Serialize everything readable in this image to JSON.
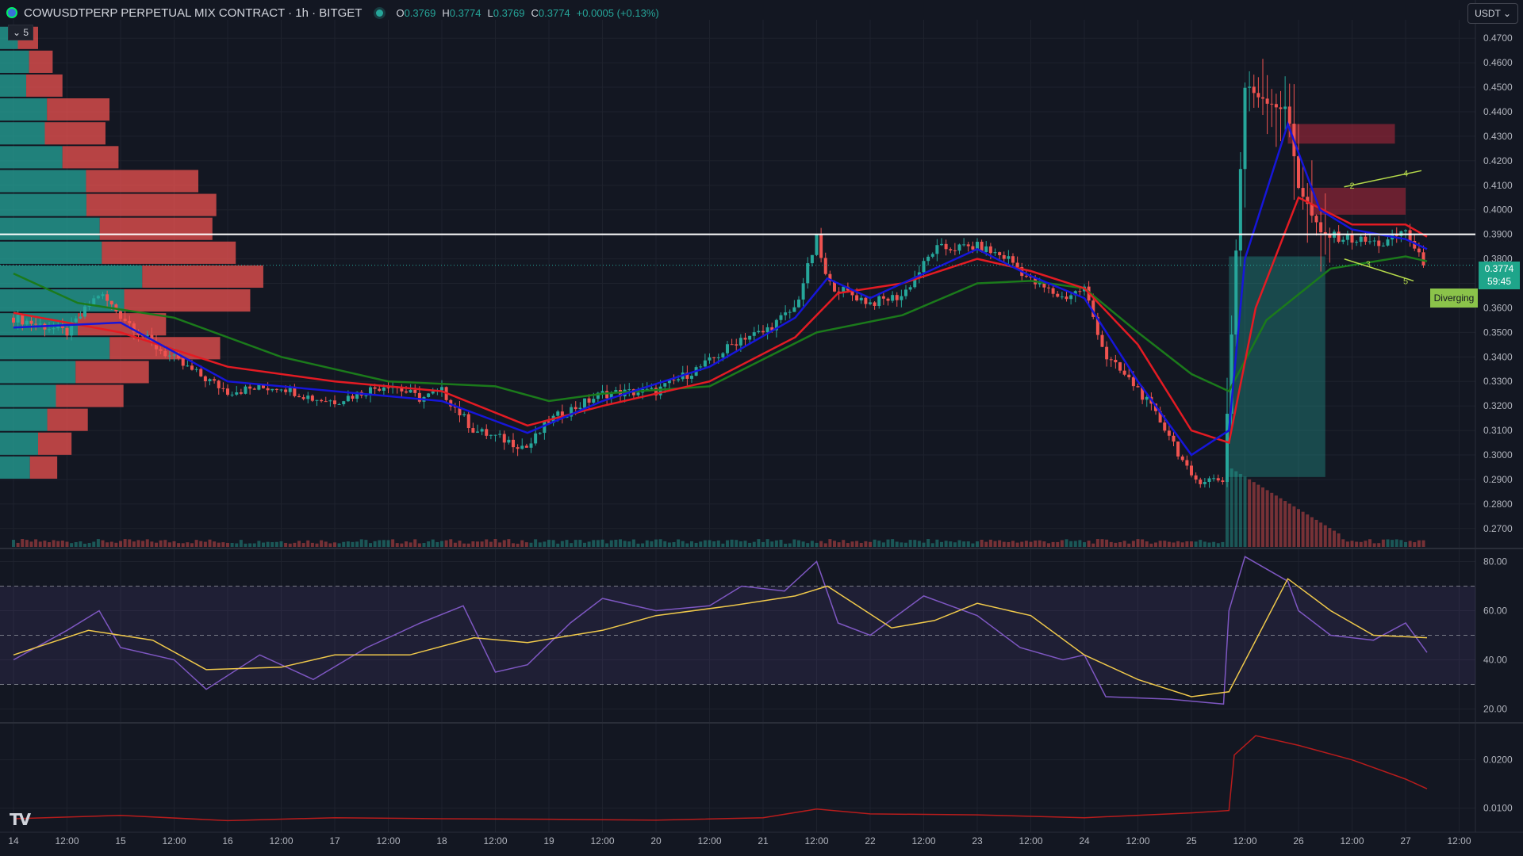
{
  "header": {
    "title": "COWUSDTPERP PERPETUAL MIX CONTRACT · 1h · BITGET",
    "ohlc": [
      {
        "k": "O",
        "v": "0.3769"
      },
      {
        "k": "H",
        "v": "0.3774"
      },
      {
        "k": "L",
        "v": "0.3769"
      },
      {
        "k": "C",
        "v": "0.3774"
      }
    ],
    "change": "+0.0005 (+0.13%)"
  },
  "controls": {
    "collapse_label": "⌄ 5",
    "currency": "USDT ⌄"
  },
  "last_price": {
    "value": "0.3774",
    "countdown": "59:45"
  },
  "diverging_label": "Diverging",
  "logo_text": "TV",
  "colors": {
    "background": "#131722",
    "grid": "#1e222d",
    "up": "#26a69a",
    "down": "#ef5350",
    "ema_fast": "#1616d9",
    "ema_mid": "#e31b23",
    "ema_slow": "#1b7a1b",
    "rsi": "#7e57c2",
    "rsi_ma": "#f0c94b",
    "oscillator": "#b71c1c",
    "level_line": "#ffffff"
  },
  "chart_data": [
    {
      "type": "candlestick",
      "pane": "price",
      "ylim": [
        0.2625,
        0.4775
      ],
      "y_ticks": [
        "0.4700",
        "0.4600",
        "0.4500",
        "0.4400",
        "0.4300",
        "0.4200",
        "0.4100",
        "0.4000",
        "0.3900",
        "0.3800",
        "0.3700",
        "0.3600",
        "0.3500",
        "0.3400",
        "0.3300",
        "0.3200",
        "0.3100",
        "0.3000",
        "0.2900",
        "0.2800",
        "0.2700"
      ],
      "x_tick_labels": [
        "14",
        "12:00",
        "15",
        "12:00",
        "16",
        "12:00",
        "17",
        "12:00",
        "18",
        "12:00",
        "19",
        "12:00",
        "20",
        "12:00",
        "21",
        "12:00",
        "22",
        "12:00",
        "23",
        "12:00",
        "24",
        "12:00",
        "25",
        "12:00",
        "26",
        "12:00",
        "27",
        "12:00"
      ],
      "close_series": [
        {
          "day": 14.0,
          "price": 0.356
        },
        {
          "day": 14.5,
          "price": 0.35
        },
        {
          "day": 14.8,
          "price": 0.366
        },
        {
          "day": 15.0,
          "price": 0.357
        },
        {
          "day": 15.3,
          "price": 0.345
        },
        {
          "day": 15.6,
          "price": 0.336
        },
        {
          "day": 16.0,
          "price": 0.326
        },
        {
          "day": 16.5,
          "price": 0.328
        },
        {
          "day": 16.8,
          "price": 0.323
        },
        {
          "day": 17.0,
          "price": 0.322
        },
        {
          "day": 17.5,
          "price": 0.329
        },
        {
          "day": 17.8,
          "price": 0.323
        },
        {
          "day": 18.0,
          "price": 0.326
        },
        {
          "day": 18.3,
          "price": 0.31
        },
        {
          "day": 18.6,
          "price": 0.306
        },
        {
          "day": 18.8,
          "price": 0.303
        },
        {
          "day": 19.0,
          "price": 0.314
        },
        {
          "day": 19.5,
          "price": 0.325
        },
        {
          "day": 20.0,
          "price": 0.326
        },
        {
          "day": 20.5,
          "price": 0.338
        },
        {
          "day": 20.8,
          "price": 0.348
        },
        {
          "day": 21.0,
          "price": 0.35
        },
        {
          "day": 21.3,
          "price": 0.36
        },
        {
          "day": 21.5,
          "price": 0.388
        },
        {
          "day": 21.6,
          "price": 0.37
        },
        {
          "day": 22.0,
          "price": 0.362
        },
        {
          "day": 22.3,
          "price": 0.365
        },
        {
          "day": 22.6,
          "price": 0.384
        },
        {
          "day": 23.0,
          "price": 0.385
        },
        {
          "day": 23.3,
          "price": 0.38
        },
        {
          "day": 23.5,
          "price": 0.371
        },
        {
          "day": 23.8,
          "price": 0.364
        },
        {
          "day": 24.0,
          "price": 0.368
        },
        {
          "day": 24.2,
          "price": 0.34
        },
        {
          "day": 24.5,
          "price": 0.327
        },
        {
          "day": 24.8,
          "price": 0.308
        },
        {
          "day": 25.0,
          "price": 0.29
        },
        {
          "day": 25.3,
          "price": 0.29
        },
        {
          "day": 25.35,
          "price": 0.33
        },
        {
          "day": 25.5,
          "price": 0.45
        },
        {
          "day": 25.7,
          "price": 0.445
        },
        {
          "day": 25.9,
          "price": 0.44
        },
        {
          "day": 26.0,
          "price": 0.41
        },
        {
          "day": 26.2,
          "price": 0.39
        },
        {
          "day": 26.5,
          "price": 0.388
        },
        {
          "day": 26.8,
          "price": 0.386
        },
        {
          "day": 27.0,
          "price": 0.392
        },
        {
          "day": 27.1,
          "price": 0.382
        },
        {
          "day": 27.2,
          "price": 0.3774
        }
      ],
      "ema_fast": [
        {
          "day": 14.0,
          "price": 0.352
        },
        {
          "day": 15.0,
          "price": 0.354
        },
        {
          "day": 16.0,
          "price": 0.33
        },
        {
          "day": 17.0,
          "price": 0.326
        },
        {
          "day": 18.0,
          "price": 0.322
        },
        {
          "day": 18.8,
          "price": 0.309
        },
        {
          "day": 19.5,
          "price": 0.322
        },
        {
          "day": 20.5,
          "price": 0.336
        },
        {
          "day": 21.3,
          "price": 0.356
        },
        {
          "day": 21.6,
          "price": 0.372
        },
        {
          "day": 22.0,
          "price": 0.364
        },
        {
          "day": 22.5,
          "price": 0.374
        },
        {
          "day": 23.0,
          "price": 0.384
        },
        {
          "day": 23.5,
          "price": 0.373
        },
        {
          "day": 24.0,
          "price": 0.364
        },
        {
          "day": 24.5,
          "price": 0.33
        },
        {
          "day": 25.0,
          "price": 0.3
        },
        {
          "day": 25.35,
          "price": 0.31
        },
        {
          "day": 25.5,
          "price": 0.38
        },
        {
          "day": 25.9,
          "price": 0.435
        },
        {
          "day": 26.2,
          "price": 0.4
        },
        {
          "day": 26.5,
          "price": 0.392
        },
        {
          "day": 27.0,
          "price": 0.388
        },
        {
          "day": 27.2,
          "price": 0.384
        }
      ],
      "ema_mid": [
        {
          "day": 14.0,
          "price": 0.358
        },
        {
          "day": 15.0,
          "price": 0.35
        },
        {
          "day": 16.0,
          "price": 0.336
        },
        {
          "day": 17.0,
          "price": 0.33
        },
        {
          "day": 18.0,
          "price": 0.326
        },
        {
          "day": 18.8,
          "price": 0.312
        },
        {
          "day": 19.5,
          "price": 0.32
        },
        {
          "day": 20.5,
          "price": 0.33
        },
        {
          "day": 21.3,
          "price": 0.348
        },
        {
          "day": 21.7,
          "price": 0.366
        },
        {
          "day": 22.3,
          "price": 0.37
        },
        {
          "day": 23.0,
          "price": 0.38
        },
        {
          "day": 23.5,
          "price": 0.375
        },
        {
          "day": 24.0,
          "price": 0.368
        },
        {
          "day": 24.5,
          "price": 0.345
        },
        {
          "day": 25.0,
          "price": 0.31
        },
        {
          "day": 25.35,
          "price": 0.305
        },
        {
          "day": 25.6,
          "price": 0.36
        },
        {
          "day": 26.0,
          "price": 0.405
        },
        {
          "day": 26.5,
          "price": 0.394
        },
        {
          "day": 27.0,
          "price": 0.394
        },
        {
          "day": 27.2,
          "price": 0.389
        }
      ],
      "ema_slow": [
        {
          "day": 14.0,
          "price": 0.374
        },
        {
          "day": 14.6,
          "price": 0.362
        },
        {
          "day": 15.5,
          "price": 0.356
        },
        {
          "day": 16.5,
          "price": 0.34
        },
        {
          "day": 17.5,
          "price": 0.33
        },
        {
          "day": 18.5,
          "price": 0.328
        },
        {
          "day": 19.0,
          "price": 0.322
        },
        {
          "day": 19.5,
          "price": 0.325
        },
        {
          "day": 20.5,
          "price": 0.328
        },
        {
          "day": 21.5,
          "price": 0.35
        },
        {
          "day": 22.3,
          "price": 0.357
        },
        {
          "day": 23.0,
          "price": 0.37
        },
        {
          "day": 23.5,
          "price": 0.371
        },
        {
          "day": 24.0,
          "price": 0.368
        },
        {
          "day": 24.5,
          "price": 0.35
        },
        {
          "day": 25.0,
          "price": 0.333
        },
        {
          "day": 25.35,
          "price": 0.326
        },
        {
          "day": 25.7,
          "price": 0.355
        },
        {
          "day": 26.3,
          "price": 0.376
        },
        {
          "day": 27.0,
          "price": 0.381
        },
        {
          "day": 27.2,
          "price": 0.379
        }
      ],
      "horizontal_line": 0.39,
      "last_price_line": 0.3774,
      "zones": [
        {
          "kind": "supply",
          "day_from": 25.9,
          "day_to": 26.9,
          "price_from": 0.427,
          "price_to": 0.435
        },
        {
          "kind": "supply",
          "day_from": 26.1,
          "day_to": 27.0,
          "price_from": 0.398,
          "price_to": 0.409
        },
        {
          "kind": "position",
          "day_from": 25.35,
          "day_to": 26.25,
          "price_from": 0.291,
          "price_to": 0.381
        }
      ],
      "wedge_points": [
        {
          "label": "2",
          "day": 26.5,
          "price": 0.41
        },
        {
          "label": "4",
          "day": 27.0,
          "price": 0.415
        },
        {
          "label": "3",
          "day": 26.65,
          "price": 0.378
        },
        {
          "label": "5",
          "day": 27.0,
          "price": 0.371
        }
      ],
      "volume_profile_price_range": [
        0.29,
        0.475
      ]
    },
    {
      "type": "line",
      "pane": "rsi",
      "ylim": [
        15,
        85
      ],
      "y_ticks": [
        "80.00",
        "60.00",
        "40.00",
        "20.00"
      ],
      "bands": [
        70,
        50,
        30
      ],
      "rsi": [
        {
          "day": 14.0,
          "value": 40
        },
        {
          "day": 14.5,
          "value": 52
        },
        {
          "day": 14.8,
          "value": 60
        },
        {
          "day": 15.0,
          "value": 45
        },
        {
          "day": 15.5,
          "value": 40
        },
        {
          "day": 15.8,
          "value": 28
        },
        {
          "day": 16.3,
          "value": 42
        },
        {
          "day": 16.8,
          "value": 32
        },
        {
          "day": 17.3,
          "value": 45
        },
        {
          "day": 17.8,
          "value": 55
        },
        {
          "day": 18.2,
          "value": 62
        },
        {
          "day": 18.5,
          "value": 35
        },
        {
          "day": 18.8,
          "value": 38
        },
        {
          "day": 19.2,
          "value": 55
        },
        {
          "day": 19.5,
          "value": 65
        },
        {
          "day": 20.0,
          "value": 60
        },
        {
          "day": 20.5,
          "value": 62
        },
        {
          "day": 20.8,
          "value": 70
        },
        {
          "day": 21.2,
          "value": 68
        },
        {
          "day": 21.5,
          "value": 80
        },
        {
          "day": 21.7,
          "value": 55
        },
        {
          "day": 22.0,
          "value": 50
        },
        {
          "day": 22.5,
          "value": 66
        },
        {
          "day": 23.0,
          "value": 58
        },
        {
          "day": 23.4,
          "value": 45
        },
        {
          "day": 23.8,
          "value": 40
        },
        {
          "day": 24.0,
          "value": 42
        },
        {
          "day": 24.2,
          "value": 25
        },
        {
          "day": 24.8,
          "value": 24
        },
        {
          "day": 25.3,
          "value": 22
        },
        {
          "day": 25.35,
          "value": 60
        },
        {
          "day": 25.5,
          "value": 82
        },
        {
          "day": 25.9,
          "value": 72
        },
        {
          "day": 26.0,
          "value": 60
        },
        {
          "day": 26.3,
          "value": 50
        },
        {
          "day": 26.7,
          "value": 48
        },
        {
          "day": 27.0,
          "value": 55
        },
        {
          "day": 27.2,
          "value": 43
        }
      ],
      "rsi_ma": [
        {
          "day": 14.0,
          "value": 42
        },
        {
          "day": 14.7,
          "value": 52
        },
        {
          "day": 15.3,
          "value": 48
        },
        {
          "day": 15.8,
          "value": 36
        },
        {
          "day": 16.5,
          "value": 37
        },
        {
          "day": 17.0,
          "value": 42
        },
        {
          "day": 17.7,
          "value": 42
        },
        {
          "day": 18.3,
          "value": 49
        },
        {
          "day": 18.8,
          "value": 47
        },
        {
          "day": 19.5,
          "value": 52
        },
        {
          "day": 20.0,
          "value": 58
        },
        {
          "day": 20.7,
          "value": 62
        },
        {
          "day": 21.3,
          "value": 66
        },
        {
          "day": 21.6,
          "value": 70
        },
        {
          "day": 22.2,
          "value": 53
        },
        {
          "day": 22.6,
          "value": 56
        },
        {
          "day": 23.0,
          "value": 63
        },
        {
          "day": 23.5,
          "value": 58
        },
        {
          "day": 24.0,
          "value": 42
        },
        {
          "day": 24.5,
          "value": 32
        },
        {
          "day": 25.0,
          "value": 25
        },
        {
          "day": 25.35,
          "value": 27
        },
        {
          "day": 25.9,
          "value": 73
        },
        {
          "day": 26.3,
          "value": 60
        },
        {
          "day": 26.7,
          "value": 50
        },
        {
          "day": 27.2,
          "value": 49
        }
      ]
    },
    {
      "type": "line",
      "pane": "oscillator",
      "ylim": [
        0.005,
        0.0275
      ],
      "y_ticks": [
        "0.0200",
        "0.0100"
      ],
      "values": [
        {
          "day": 14.0,
          "value": 0.0078
        },
        {
          "day": 15.0,
          "value": 0.0085
        },
        {
          "day": 16.0,
          "value": 0.0074
        },
        {
          "day": 17.0,
          "value": 0.008
        },
        {
          "day": 18.0,
          "value": 0.0078
        },
        {
          "day": 19.0,
          "value": 0.0077
        },
        {
          "day": 20.0,
          "value": 0.0075
        },
        {
          "day": 21.0,
          "value": 0.008
        },
        {
          "day": 21.5,
          "value": 0.0098
        },
        {
          "day": 22.0,
          "value": 0.0088
        },
        {
          "day": 23.0,
          "value": 0.0086
        },
        {
          "day": 24.0,
          "value": 0.008
        },
        {
          "day": 25.0,
          "value": 0.009
        },
        {
          "day": 25.35,
          "value": 0.0095
        },
        {
          "day": 25.4,
          "value": 0.021
        },
        {
          "day": 25.6,
          "value": 0.025
        },
        {
          "day": 26.0,
          "value": 0.023
        },
        {
          "day": 26.5,
          "value": 0.02
        },
        {
          "day": 27.0,
          "value": 0.016
        },
        {
          "day": 27.2,
          "value": 0.014
        }
      ]
    }
  ]
}
